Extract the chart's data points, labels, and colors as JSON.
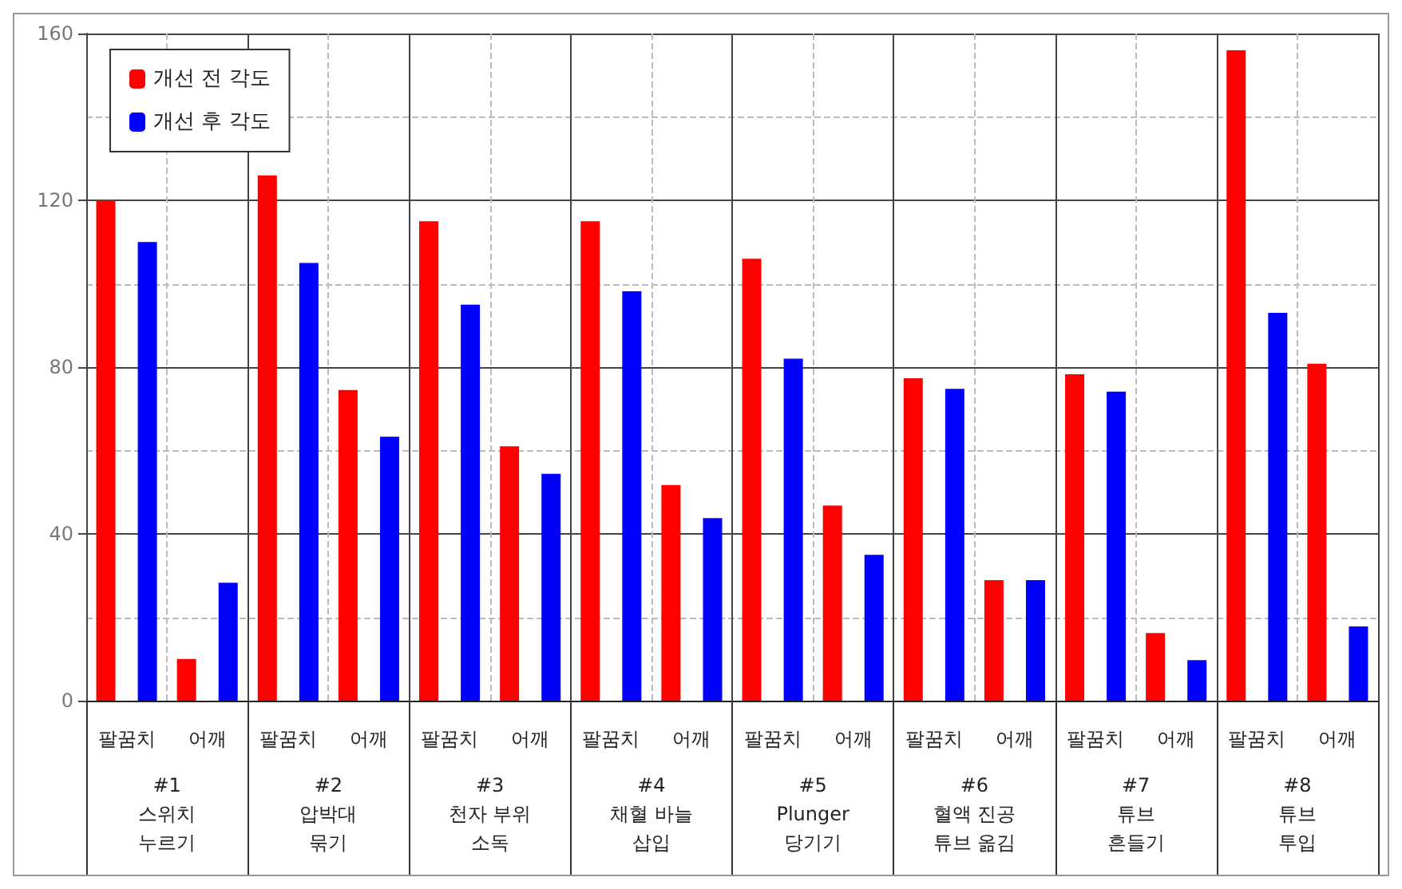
{
  "chart_data": {
    "type": "bar",
    "categories": [
      "팔꿈치",
      "어깨",
      "팔꿈치",
      "어깨",
      "팔꿈치",
      "어깨",
      "팔꿈치",
      "어깨",
      "팔꿈치",
      "어깨",
      "팔꿈치",
      "어깨",
      "팔꿈치",
      "어깨",
      "팔꿈치",
      "어깨"
    ],
    "series": [
      {
        "name": "개선 전 각도",
        "color": "#ff0000",
        "values": [
          120,
          10,
          126,
          74.5,
          115,
          61,
          115,
          51.7,
          106,
          46.8,
          77.3,
          28.9,
          78.3,
          16.2,
          156,
          80.8
        ]
      },
      {
        "name": "개선 후 각도",
        "color": "#0000ff",
        "values": [
          110,
          28.3,
          105,
          63.3,
          95,
          54.4,
          98.2,
          43.8,
          82,
          35,
          74.8,
          28.9,
          74.1,
          9.7,
          93,
          17.8
        ]
      }
    ],
    "annotations": [
      "#1\n스위치\n누르기",
      "#2\n압박대\n묶기",
      "#3\n천자 부위\n소독",
      "#4\n채혈 바늘\n삽입",
      "#5\nPlunger\n당기기",
      "#6\n혈액 진공\n튜브 옮김",
      "#7\n튜브\n흔들기",
      "#8\n튜브\n투입"
    ],
    "ylim": [
      0,
      160
    ],
    "yticks": [
      0,
      40,
      80,
      120,
      160
    ],
    "grid": true,
    "legend": "top left"
  }
}
